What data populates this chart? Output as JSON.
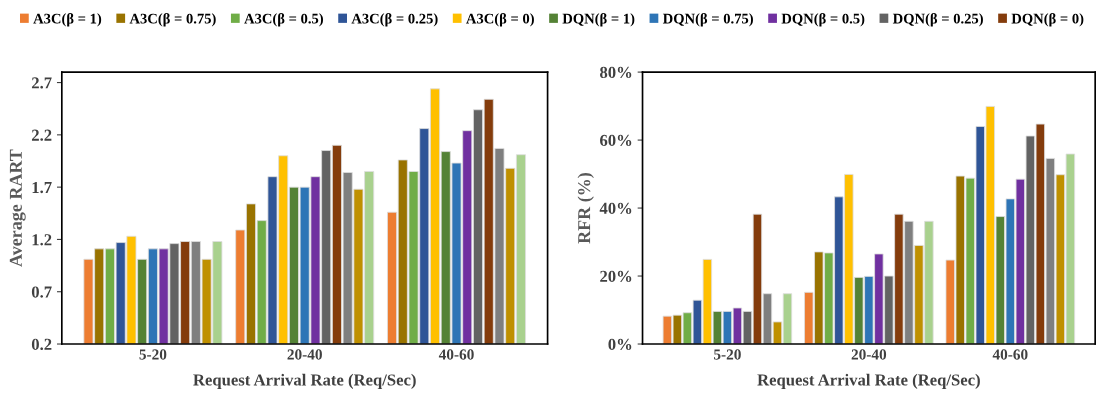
{
  "chart_data": [
    {
      "type": "bar",
      "xlabel": "Request Arrival Rate (Req/Sec)",
      "ylabel": "Average RART",
      "categories": [
        "5-20",
        "20-40",
        "40-60"
      ],
      "ylim": [
        0.2,
        2.8
      ],
      "yticks": [
        0.2,
        0.7,
        1.2,
        1.7,
        2.2,
        2.7
      ],
      "grid": false,
      "legend": "top",
      "series": [
        {
          "name": "A3C(β = 1)",
          "color": "#ed7d31",
          "values": [
            1.01,
            1.29,
            1.46
          ]
        },
        {
          "name": "A3C(β = 0.75)",
          "color": "#997300",
          "values": [
            1.11,
            1.54,
            1.96
          ]
        },
        {
          "name": "A3C(β = 0.5)",
          "color": "#70ad47",
          "values": [
            1.11,
            1.38,
            1.85
          ]
        },
        {
          "name": "A3C(β = 0.25)",
          "color": "#2f5597",
          "values": [
            1.17,
            1.8,
            2.26
          ]
        },
        {
          "name": "A3C(β = 0)",
          "color": "#ffc000",
          "values": [
            1.23,
            2.0,
            2.64
          ]
        },
        {
          "name": "DQN(β = 1)",
          "color": "#548235",
          "values": [
            1.01,
            1.7,
            2.04
          ]
        },
        {
          "name": "DQN(β = 0.75)",
          "color": "#2e75b6",
          "values": [
            1.11,
            1.7,
            1.93
          ]
        },
        {
          "name": "DQN(β = 0.5)",
          "color": "#7030a0",
          "values": [
            1.11,
            1.8,
            2.24
          ]
        },
        {
          "name": "DQN(β = 0.25)",
          "color": "#636363",
          "values": [
            1.16,
            2.05,
            2.44
          ]
        },
        {
          "name": "DQN(β = 0)",
          "color": "#843c0c",
          "values": [
            1.18,
            2.1,
            2.54
          ]
        },
        {
          "color": "#7f7f7f",
          "values": [
            1.18,
            1.84,
            2.07
          ]
        },
        {
          "color": "#bf9000",
          "values": [
            1.01,
            1.68,
            1.88
          ]
        },
        {
          "color": "#a9d18e",
          "values": [
            1.18,
            1.85,
            2.01
          ]
        }
      ]
    },
    {
      "type": "bar",
      "xlabel": "Request Arrival Rate (Req/Sec)",
      "ylabel": "RFR (%)",
      "categories": [
        "5-20",
        "20-40",
        "40-60"
      ],
      "ylim": [
        0,
        80
      ],
      "yticks": [
        {
          "value": 0,
          "label": "0%"
        },
        {
          "value": 20,
          "label": "20%"
        },
        {
          "value": 40,
          "label": "40%"
        },
        {
          "value": 60,
          "label": "60%"
        },
        {
          "value": 80,
          "label": "80%"
        }
      ],
      "grid": false,
      "legend": "top",
      "series": [
        {
          "name": "A3C(β = 1)",
          "color": "#ed7d31",
          "values": [
            8.2,
            15.2,
            24.7
          ]
        },
        {
          "name": "A3C(β = 0.75)",
          "color": "#997300",
          "values": [
            8.5,
            27.1,
            49.4
          ]
        },
        {
          "name": "A3C(β = 0.5)",
          "color": "#70ad47",
          "values": [
            9.2,
            26.8,
            48.8
          ]
        },
        {
          "name": "A3C(β = 0.25)",
          "color": "#2f5597",
          "values": [
            12.9,
            43.3,
            64.0
          ]
        },
        {
          "name": "A3C(β = 0)",
          "color": "#ffc000",
          "values": [
            24.9,
            49.9,
            69.9
          ]
        },
        {
          "name": "DQN(β = 1)",
          "color": "#548235",
          "values": [
            9.6,
            19.6,
            37.5
          ]
        },
        {
          "name": "DQN(β = 0.75)",
          "color": "#2e75b6",
          "values": [
            9.6,
            19.9,
            42.7
          ]
        },
        {
          "name": "DQN(β = 0.5)",
          "color": "#7030a0",
          "values": [
            10.6,
            26.5,
            48.5
          ]
        },
        {
          "name": "DQN(β = 0.25)",
          "color": "#636363",
          "values": [
            9.6,
            20.0,
            61.2
          ]
        },
        {
          "name": "DQN(β = 0)",
          "color": "#843c0c",
          "values": [
            38.2,
            38.2,
            64.7
          ]
        },
        {
          "color": "#7f7f7f",
          "values": [
            14.8,
            36.1,
            54.6
          ]
        },
        {
          "color": "#bf9000",
          "values": [
            6.5,
            29.0,
            49.8
          ]
        },
        {
          "color": "#a9d18e",
          "values": [
            14.8,
            36.1,
            55.9
          ]
        }
      ]
    }
  ]
}
